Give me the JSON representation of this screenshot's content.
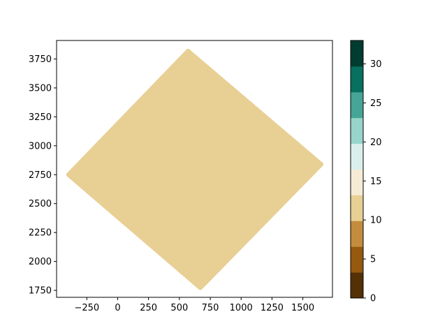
{
  "chart_data": {
    "type": "scatter",
    "title": "",
    "xlabel": "",
    "ylabel": "",
    "xlim": [
      -495,
      1740
    ],
    "ylim": [
      1690,
      3910
    ],
    "xticks": [
      -250,
      0,
      250,
      500,
      750,
      1000,
      1250,
      1500
    ],
    "xtick_labels": [
      "−250",
      "0",
      "250",
      "500",
      "750",
      "1000",
      "1250",
      "1500"
    ],
    "yticks": [
      1750,
      2000,
      2250,
      2500,
      2750,
      3000,
      3250,
      3500,
      3750
    ],
    "ytick_labels": [
      "1750",
      "2000",
      "2250",
      "2500",
      "2750",
      "3000",
      "3250",
      "3500",
      "3750"
    ],
    "grid": false,
    "series": [
      {
        "shape": "filled diamond-shaped point cloud",
        "color": "#e8cf94",
        "color_value": 11,
        "vertices": [
          {
            "x": 570,
            "y": 3820
          },
          {
            "x": 1650,
            "y": 2840
          },
          {
            "x": 670,
            "y": 1770
          },
          {
            "x": -400,
            "y": 2750
          }
        ]
      }
    ],
    "colorbar": {
      "cmap": "BrBG",
      "range": [
        0,
        33
      ],
      "boundaries": [
        0,
        3.3,
        6.6,
        9.9,
        13.2,
        16.5,
        19.8,
        23.1,
        26.4,
        29.7,
        33
      ],
      "colors": [
        "#543005",
        "#955a0f",
        "#c48c3e",
        "#e8cf94",
        "#f6ebd5",
        "#daefec",
        "#97d5ca",
        "#46a596",
        "#08705f",
        "#003c30"
      ],
      "ticks": [
        0,
        5,
        10,
        15,
        20,
        25,
        30
      ],
      "tick_labels": [
        "0",
        "5",
        "10",
        "15",
        "20",
        "25",
        "30"
      ]
    }
  }
}
